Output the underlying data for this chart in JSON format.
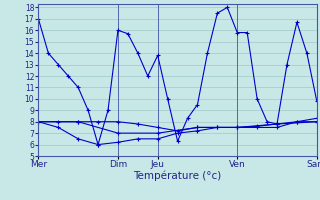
{
  "title": "Température (°c)",
  "bg_color": "#c8e8e8",
  "grid_color": "#a0c8c8",
  "line_color": "#0000cc",
  "x_tick_labels": [
    "Mer",
    "Dim",
    "Jeu",
    "Ven",
    "Sam"
  ],
  "x_tick_positions": [
    0,
    8,
    12,
    20,
    28
  ],
  "ylim": [
    5,
    18
  ],
  "yticks": [
    5,
    6,
    7,
    8,
    9,
    10,
    11,
    12,
    13,
    14,
    15,
    16,
    17,
    18
  ],
  "line1_x": [
    0,
    1,
    2,
    3,
    4,
    5,
    6,
    7,
    8,
    9,
    10,
    11,
    12,
    13,
    14,
    15,
    16,
    17,
    18,
    19,
    20,
    21,
    22,
    23,
    24,
    25,
    26,
    27,
    28
  ],
  "line1_y": [
    17,
    14,
    13,
    12,
    11,
    9,
    6,
    9,
    16,
    15.7,
    14,
    12,
    13.8,
    10,
    6.3,
    8.3,
    9.5,
    14,
    17.5,
    18,
    15.8,
    15.8,
    10,
    8,
    7.8,
    13,
    16.7,
    14,
    9.8
  ],
  "line2_x": [
    0,
    2,
    4,
    6,
    8,
    10,
    12,
    14,
    16,
    18,
    20,
    22,
    24,
    26,
    28
  ],
  "line2_y": [
    8.0,
    8.0,
    8.0,
    8.0,
    8.0,
    7.8,
    7.5,
    7.2,
    7.5,
    7.5,
    7.5,
    7.6,
    7.8,
    8.0,
    8.0
  ],
  "line3_x": [
    0,
    4,
    8,
    12,
    16,
    20,
    24,
    28
  ],
  "line3_y": [
    8.0,
    8.0,
    7.0,
    7.0,
    7.5,
    7.5,
    7.8,
    8.0
  ],
  "line4_x": [
    0,
    2,
    4,
    6,
    8,
    10,
    12,
    14,
    16,
    18,
    20,
    22,
    24,
    26,
    28
  ],
  "line4_y": [
    8.0,
    7.5,
    6.5,
    6.0,
    6.2,
    6.5,
    6.5,
    7.0,
    7.2,
    7.5,
    7.5,
    7.5,
    7.5,
    8.0,
    8.3
  ]
}
